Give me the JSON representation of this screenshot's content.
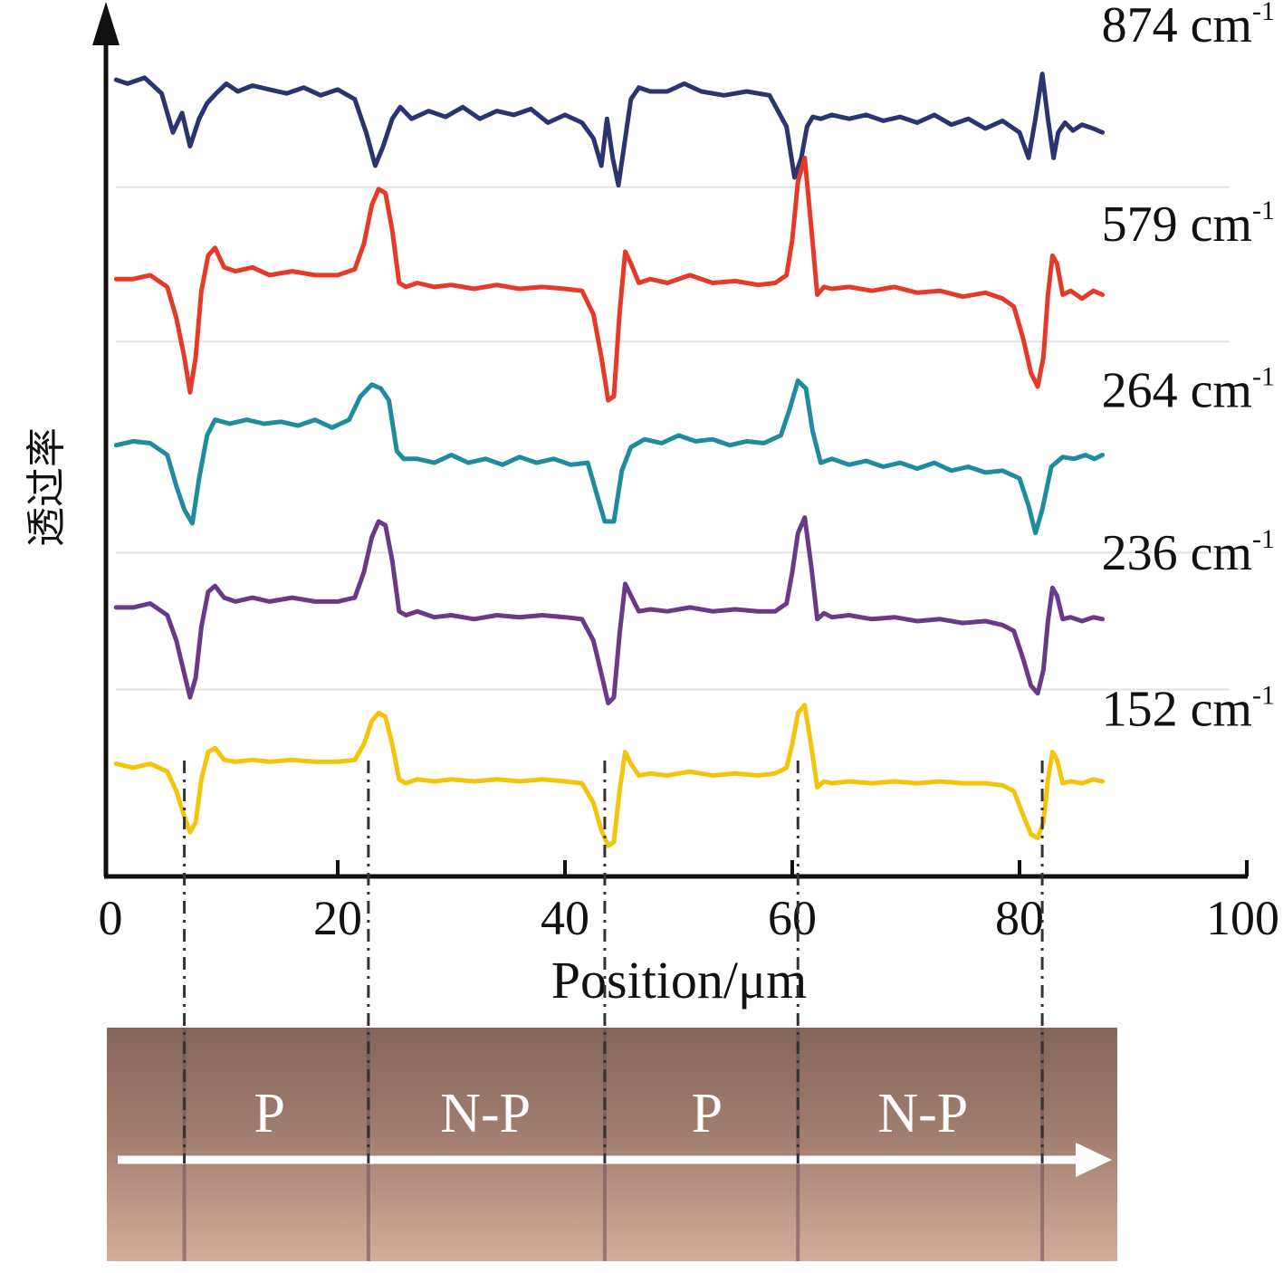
{
  "chart_data": {
    "type": "line",
    "xlabel": "Position/μm",
    "ylabel": "透过率",
    "xlim": [
      0,
      100
    ],
    "xticks": [
      0,
      20,
      40,
      60,
      80,
      100
    ],
    "grid": false,
    "stacked_offsets": true,
    "series": [
      {
        "name": "874 cm",
        "superscript": "-1",
        "color": "#2a3570",
        "x": [
          0.5,
          1.5,
          3,
          4.5,
          5.5,
          6.3,
          7,
          7.8,
          8.5,
          9.3,
          10.2,
          11.2,
          12.5,
          14,
          15.5,
          17,
          18.5,
          20,
          21.5,
          22.5,
          23.3,
          24,
          24.8,
          25.5,
          26.5,
          28,
          29.5,
          31,
          32.5,
          34,
          35.5,
          37,
          38.5,
          40,
          41.5,
          42.5,
          43.2,
          43.7,
          44.2,
          44.7,
          45.2,
          45.8,
          46.5,
          47.5,
          49,
          50.5,
          52,
          54,
          56,
          58,
          59.5,
          60.2,
          60.8,
          61.3,
          61.8,
          62.5,
          63.5,
          65,
          66.5,
          68,
          69.5,
          71,
          72.5,
          74,
          75.5,
          77,
          78.5,
          80,
          80.8,
          81.4,
          82,
          82.5,
          83,
          83.4,
          84,
          84.7,
          85.5,
          86.5,
          87.3
        ],
        "values": [
          3.82,
          3.8,
          3.83,
          3.75,
          3.55,
          3.65,
          3.48,
          3.62,
          3.7,
          3.75,
          3.8,
          3.76,
          3.79,
          3.77,
          3.75,
          3.78,
          3.74,
          3.77,
          3.72,
          3.55,
          3.38,
          3.48,
          3.62,
          3.68,
          3.62,
          3.66,
          3.63,
          3.68,
          3.62,
          3.66,
          3.64,
          3.67,
          3.6,
          3.64,
          3.6,
          3.52,
          3.38,
          3.62,
          3.42,
          3.28,
          3.48,
          3.72,
          3.78,
          3.76,
          3.76,
          3.8,
          3.76,
          3.74,
          3.76,
          3.74,
          3.58,
          3.32,
          3.42,
          3.58,
          3.63,
          3.62,
          3.64,
          3.62,
          3.64,
          3.61,
          3.63,
          3.6,
          3.64,
          3.59,
          3.62,
          3.57,
          3.61,
          3.55,
          3.42,
          3.62,
          3.85,
          3.62,
          3.42,
          3.55,
          3.6,
          3.56,
          3.59,
          3.57,
          3.55
        ]
      },
      {
        "name": "579 cm",
        "superscript": "-1",
        "color": "#e53a27",
        "x": [
          0.5,
          2,
          3.5,
          5,
          5.8,
          6.5,
          7,
          7.5,
          8,
          8.6,
          9.2,
          10,
          11,
          12.5,
          14,
          16,
          18,
          20,
          21.5,
          22.3,
          23,
          23.6,
          24.2,
          24.8,
          25.4,
          26,
          27,
          28.5,
          30,
          32,
          34,
          36,
          38,
          40,
          41.5,
          42.5,
          43.2,
          43.8,
          44.3,
          44.8,
          45.3,
          45.8,
          46.5,
          47.5,
          49,
          51,
          53,
          55,
          57,
          58.5,
          59.5,
          60,
          60.5,
          61.1,
          61.7,
          62.2,
          62.8,
          63.5,
          65,
          67,
          69,
          71,
          73,
          75,
          77,
          78.5,
          79.5,
          80.3,
          81,
          81.6,
          82.1,
          82.5,
          82.9,
          83.3,
          83.8,
          84.5,
          85.5,
          86.5,
          87.3
        ],
        "values": [
          2.8,
          2.8,
          2.82,
          2.76,
          2.6,
          2.4,
          2.22,
          2.4,
          2.74,
          2.92,
          2.96,
          2.86,
          2.84,
          2.86,
          2.82,
          2.84,
          2.82,
          2.82,
          2.85,
          2.98,
          3.18,
          3.26,
          3.24,
          3.05,
          2.78,
          2.76,
          2.78,
          2.76,
          2.77,
          2.75,
          2.77,
          2.75,
          2.76,
          2.75,
          2.74,
          2.62,
          2.4,
          2.18,
          2.2,
          2.62,
          2.94,
          2.88,
          2.78,
          2.8,
          2.78,
          2.82,
          2.78,
          2.79,
          2.77,
          2.78,
          2.82,
          3.0,
          3.3,
          3.42,
          3.05,
          2.72,
          2.76,
          2.75,
          2.76,
          2.74,
          2.76,
          2.73,
          2.74,
          2.71,
          2.73,
          2.7,
          2.66,
          2.5,
          2.32,
          2.25,
          2.4,
          2.72,
          2.92,
          2.88,
          2.72,
          2.74,
          2.7,
          2.74,
          2.72
        ]
      },
      {
        "name": "264 cm",
        "superscript": "-1",
        "color": "#1e8c9e",
        "x": [
          0.5,
          2,
          3.5,
          5,
          5.8,
          6.5,
          7.2,
          7.8,
          8.5,
          9.2,
          10.5,
          12,
          13.5,
          15,
          16.5,
          18,
          19.5,
          21,
          22,
          23,
          23.8,
          24.5,
          25.2,
          25.8,
          27,
          28.5,
          30,
          31.5,
          33,
          34.5,
          36,
          37.5,
          39,
          40.5,
          42,
          42.8,
          43.5,
          44.3,
          45,
          45.8,
          47,
          48.5,
          50,
          51.5,
          53,
          54.5,
          56,
          57.5,
          59,
          59.8,
          60.5,
          61.2,
          61.8,
          62.5,
          63.5,
          65,
          66.5,
          68,
          69.5,
          71,
          72.5,
          74,
          75.5,
          77,
          78.5,
          80,
          80.8,
          81.4,
          82,
          82.8,
          83.8,
          84.8,
          85.8,
          86.6,
          87.3
        ],
        "values": [
          1.95,
          1.97,
          1.96,
          1.9,
          1.74,
          1.62,
          1.55,
          1.78,
          2.0,
          2.08,
          2.06,
          2.08,
          2.06,
          2.07,
          2.05,
          2.08,
          2.04,
          2.08,
          2.2,
          2.26,
          2.24,
          2.18,
          1.92,
          1.88,
          1.88,
          1.86,
          1.9,
          1.86,
          1.88,
          1.85,
          1.89,
          1.86,
          1.88,
          1.85,
          1.86,
          1.7,
          1.56,
          1.56,
          1.82,
          1.94,
          1.98,
          1.96,
          2.0,
          1.97,
          1.98,
          1.95,
          1.97,
          1.96,
          2.0,
          2.14,
          2.28,
          2.24,
          2.02,
          1.86,
          1.88,
          1.85,
          1.87,
          1.84,
          1.86,
          1.83,
          1.86,
          1.82,
          1.84,
          1.81,
          1.82,
          1.78,
          1.64,
          1.5,
          1.62,
          1.84,
          1.89,
          1.88,
          1.9,
          1.88,
          1.9
        ]
      },
      {
        "name": "236 cm",
        "superscript": "-1",
        "color": "#6a3a88",
        "x": [
          0.5,
          2,
          3.5,
          5,
          5.8,
          6.5,
          7,
          7.5,
          8,
          8.6,
          9.2,
          10,
          11,
          12.5,
          14,
          16,
          18,
          20,
          21.5,
          22.3,
          23,
          23.6,
          24.2,
          24.8,
          25.4,
          26,
          27,
          28.5,
          30,
          32,
          34,
          36,
          38,
          40,
          41.5,
          42.5,
          43.2,
          43.8,
          44.3,
          44.8,
          45.3,
          45.8,
          46.5,
          47.5,
          49,
          51,
          53,
          55,
          57,
          58.5,
          59.5,
          60,
          60.5,
          61.1,
          61.7,
          62.2,
          62.8,
          63.5,
          65,
          67,
          69,
          71,
          73,
          75,
          77,
          78.5,
          79.5,
          80.3,
          81,
          81.6,
          82.1,
          82.5,
          82.9,
          83.3,
          83.8,
          84.5,
          85.5,
          86.5,
          87.3
        ],
        "values": [
          1.12,
          1.12,
          1.14,
          1.08,
          0.95,
          0.78,
          0.66,
          0.76,
          1.02,
          1.2,
          1.23,
          1.17,
          1.15,
          1.17,
          1.15,
          1.17,
          1.15,
          1.15,
          1.17,
          1.3,
          1.48,
          1.56,
          1.54,
          1.36,
          1.1,
          1.08,
          1.1,
          1.07,
          1.08,
          1.06,
          1.08,
          1.07,
          1.08,
          1.07,
          1.06,
          0.95,
          0.78,
          0.63,
          0.66,
          0.98,
          1.24,
          1.18,
          1.1,
          1.11,
          1.1,
          1.12,
          1.1,
          1.11,
          1.1,
          1.1,
          1.14,
          1.3,
          1.5,
          1.58,
          1.32,
          1.06,
          1.09,
          1.07,
          1.08,
          1.06,
          1.07,
          1.05,
          1.06,
          1.04,
          1.05,
          1.03,
          1.0,
          0.86,
          0.72,
          0.68,
          0.8,
          1.05,
          1.22,
          1.18,
          1.06,
          1.07,
          1.05,
          1.07,
          1.06
        ]
      },
      {
        "name": "152 cm",
        "superscript": "-1",
        "color": "#f2c40c",
        "x": [
          0.5,
          2,
          3.5,
          5,
          5.8,
          6.5,
          7,
          7.5,
          8,
          8.6,
          9.2,
          10,
          11,
          12.5,
          14,
          16,
          18,
          20,
          21.5,
          22.3,
          23,
          23.6,
          24.2,
          24.8,
          25.4,
          26,
          27,
          28.5,
          30,
          32,
          34,
          36,
          38,
          40,
          41.5,
          42.5,
          43.2,
          43.8,
          44.3,
          44.8,
          45.3,
          45.8,
          46.5,
          47.5,
          49,
          51,
          53,
          55,
          57,
          58.5,
          59.5,
          60,
          60.5,
          61.1,
          61.7,
          62.2,
          62.8,
          63.5,
          65,
          67,
          69,
          71,
          73,
          75,
          77,
          78.5,
          79.5,
          80.3,
          81,
          81.6,
          82.1,
          82.5,
          82.9,
          83.3,
          83.8,
          84.5,
          85.5,
          86.5,
          87.3
        ],
        "values": [
          0.32,
          0.3,
          0.32,
          0.28,
          0.18,
          0.05,
          -0.03,
          0.02,
          0.24,
          0.38,
          0.4,
          0.34,
          0.33,
          0.34,
          0.33,
          0.34,
          0.33,
          0.33,
          0.34,
          0.42,
          0.54,
          0.58,
          0.56,
          0.42,
          0.24,
          0.22,
          0.24,
          0.23,
          0.24,
          0.23,
          0.24,
          0.23,
          0.24,
          0.23,
          0.22,
          0.12,
          -0.02,
          -0.1,
          -0.08,
          0.18,
          0.38,
          0.32,
          0.26,
          0.27,
          0.26,
          0.28,
          0.26,
          0.27,
          0.26,
          0.27,
          0.3,
          0.42,
          0.58,
          0.62,
          0.4,
          0.2,
          0.23,
          0.22,
          0.23,
          0.22,
          0.23,
          0.22,
          0.23,
          0.22,
          0.22,
          0.21,
          0.18,
          0.06,
          -0.04,
          -0.06,
          0.02,
          0.24,
          0.38,
          0.34,
          0.22,
          0.23,
          0.22,
          0.24,
          0.23
        ]
      }
    ],
    "markers_x": [
      6.5,
      22.7,
      43.5,
      60.5,
      82
    ],
    "region_labels": [
      {
        "text": "P",
        "x": 14
      },
      {
        "text": "N-P",
        "x": 33
      },
      {
        "text": "P",
        "x": 52.5
      },
      {
        "text": "N-P",
        "x": 71.5
      }
    ]
  },
  "colors": {
    "axis": "#111111",
    "separator": "#e2e2e2",
    "marker_line": "#333333",
    "photo_top": "#8a6a5c",
    "photo_bottom": "#d0ab97",
    "arrow": "#ffffff"
  }
}
